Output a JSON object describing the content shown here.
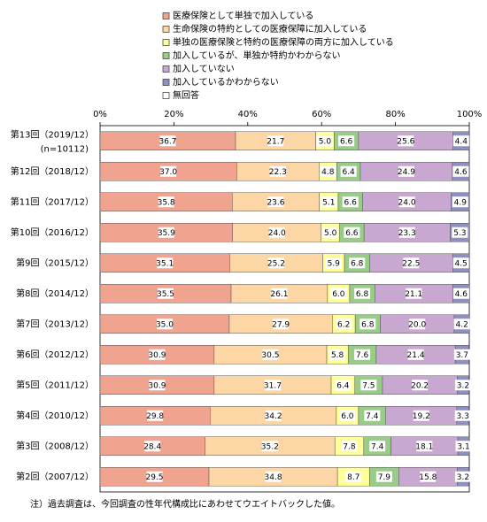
{
  "chart_data": {
    "type": "stacked-bar-horizontal",
    "categories": [
      "第13回（2019/12）",
      "第12回（2018/12）",
      "第11回（2017/12）",
      "第10回（2016/12）",
      "第9回（2015/12）",
      "第8回（2014/12）",
      "第7回（2013/12）",
      "第6回（2012/12）",
      "第5回（2011/12）",
      "第4回（2010/12）",
      "第3回（2008/12）",
      "第2回（2007/12）"
    ],
    "n_label": "(n=10112)",
    "xlim": [
      0,
      100
    ],
    "xticks": [
      {
        "value": 0,
        "label": "0%"
      },
      {
        "value": 20,
        "label": "20%"
      },
      {
        "value": 40,
        "label": "40%"
      },
      {
        "value": 60,
        "label": "60%"
      },
      {
        "value": 80,
        "label": "80%"
      },
      {
        "value": 100,
        "label": "100%"
      }
    ],
    "series": [
      {
        "name": "医療保険として単独で加入している",
        "color": "#f0a490",
        "values": [
          36.7,
          37.0,
          35.8,
          35.9,
          35.1,
          35.5,
          35.0,
          30.9,
          30.9,
          29.8,
          28.4,
          29.5
        ],
        "value_labels": [
          "36.7",
          "37.0",
          "35.8",
          "35.9",
          "35.1",
          "35.5",
          "35.0",
          "30.9",
          "30.9",
          "29.8",
          "28.4",
          "29.5"
        ]
      },
      {
        "name": "生命保険の特約としての医療保障に加入している",
        "color": "#fdd6a6",
        "values": [
          21.7,
          22.3,
          23.6,
          24.0,
          25.2,
          26.1,
          27.9,
          30.5,
          31.7,
          34.2,
          35.2,
          34.8
        ],
        "value_labels": [
          "21.7",
          "22.3",
          "23.6",
          "24.0",
          "25.2",
          "26.1",
          "27.9",
          "30.5",
          "31.7",
          "34.2",
          "35.2",
          "34.8"
        ]
      },
      {
        "name": "単独の医療保険と特約の医療保障の両方に加入している",
        "color": "#ffff99",
        "values": [
          5.0,
          4.8,
          5.1,
          5.0,
          5.9,
          6.0,
          6.2,
          5.8,
          6.4,
          6.0,
          7.8,
          8.7
        ],
        "value_labels": [
          "5.0",
          "4.8",
          "5.1",
          "5.0",
          "5.9",
          "6.0",
          "6.2",
          "5.8",
          "6.4",
          "6.0",
          "7.8",
          "8.7"
        ]
      },
      {
        "name": "加入しているが、単独か特約かわからない",
        "color": "#98cc88",
        "values": [
          6.6,
          6.4,
          6.6,
          6.6,
          6.8,
          6.8,
          6.8,
          7.6,
          7.5,
          7.4,
          7.4,
          7.9
        ],
        "value_labels": [
          "6.6",
          "6.4",
          "6.6",
          "6.6",
          "6.8",
          "6.8",
          "6.8",
          "7.6",
          "7.5",
          "7.4",
          "7.4",
          "7.9"
        ]
      },
      {
        "name": "加入していない",
        "color": "#c8a8d0",
        "values": [
          25.6,
          24.9,
          24.0,
          23.3,
          22.5,
          21.1,
          20.0,
          21.4,
          20.2,
          19.2,
          18.1,
          15.8
        ],
        "value_labels": [
          "25.6",
          "24.9",
          "24.0",
          "23.3",
          "22.5",
          "21.1",
          "20.0",
          "21.4",
          "20.2",
          "19.2",
          "18.1",
          "15.8"
        ]
      },
      {
        "name": "加入しているかわからない",
        "color": "#9090c0",
        "values": [
          4.4,
          4.6,
          4.9,
          5.3,
          4.5,
          4.6,
          4.2,
          3.7,
          3.2,
          3.3,
          3.1,
          3.2
        ],
        "value_labels": [
          "4.4",
          "4.6",
          "4.9",
          "5.3",
          "4.5",
          "4.6",
          "4.2",
          "3.7",
          "3.2",
          "3.3",
          "3.1",
          "3.2"
        ]
      },
      {
        "name": "無回答",
        "color": "#ffffff",
        "values": [
          null,
          null,
          null,
          null,
          null,
          null,
          null,
          null,
          null,
          null,
          null,
          null
        ]
      }
    ],
    "note": "注）過去調査は、今回調査の性年代構成比にあわせてウエイトバックした値。"
  }
}
